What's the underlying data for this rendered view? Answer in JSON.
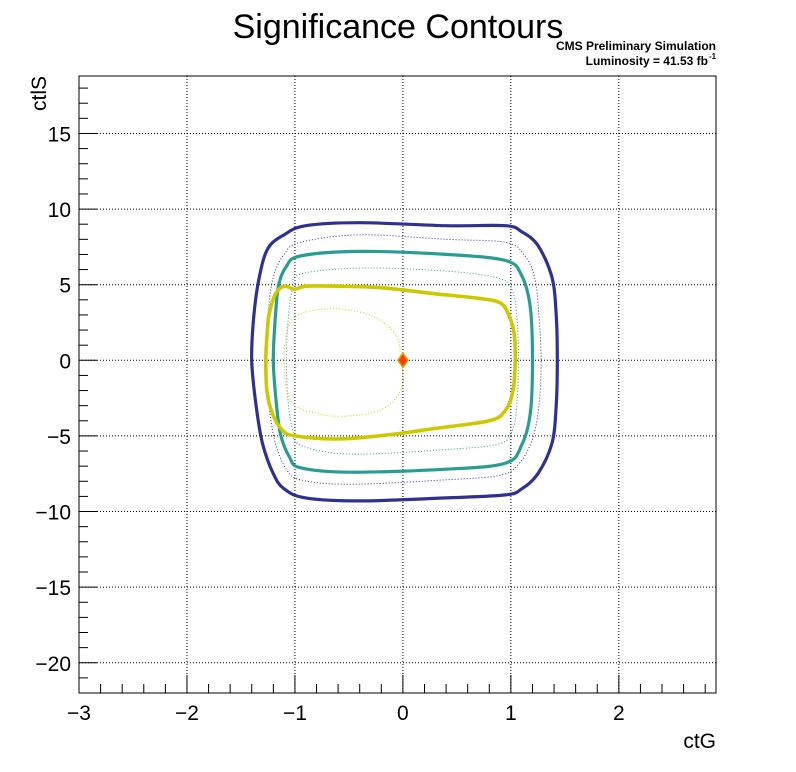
{
  "chart_data": {
    "type": "contour",
    "title": "Significance Contours",
    "annotations": [
      "CMS Preliminary Simulation",
      "Luminosity = 41.53 fb"
    ],
    "annotation_superscript": "-1",
    "xlabel": "ctG",
    "ylabel": "ctlS",
    "xlim": [
      -3,
      2.9
    ],
    "ylim": [
      -22,
      18.8
    ],
    "xticks": [
      -3,
      -2,
      -1,
      0,
      1,
      2
    ],
    "yticks": [
      -20,
      -15,
      -10,
      -5,
      0,
      5,
      10,
      15
    ],
    "xtick_labels": [
      "−3",
      "−2",
      "−1",
      "0",
      "1",
      "2"
    ],
    "ytick_labels": [
      "−20",
      "−15",
      "−10",
      "−5",
      "0",
      "5",
      "10",
      "15"
    ],
    "grid": true,
    "best_fit": {
      "x": 0,
      "y": 0,
      "color": "#ff3b00",
      "edge": "#d4a000"
    },
    "contours": [
      {
        "color": "#2e3192",
        "style": "solid",
        "width": 3.2,
        "points": [
          [
            -1.4,
            0
          ],
          [
            -1.36,
            -3
          ],
          [
            -1.3,
            -5.5
          ],
          [
            -1.2,
            -7.5
          ],
          [
            -1.1,
            -8.5
          ],
          [
            -0.9,
            -9.1
          ],
          [
            -0.4,
            -9.3
          ],
          [
            0.4,
            -9.1
          ],
          [
            0.95,
            -8.9
          ],
          [
            1.1,
            -8.5
          ],
          [
            1.25,
            -7.5
          ],
          [
            1.38,
            -5.5
          ],
          [
            1.42,
            -3
          ],
          [
            1.43,
            0
          ],
          [
            1.42,
            3
          ],
          [
            1.38,
            5.5
          ],
          [
            1.25,
            7.6
          ],
          [
            1.1,
            8.5
          ],
          [
            0.95,
            8.9
          ],
          [
            0.4,
            8.9
          ],
          [
            -0.4,
            9.1
          ],
          [
            -0.9,
            8.9
          ],
          [
            -1.1,
            8.3
          ],
          [
            -1.25,
            7.4
          ],
          [
            -1.33,
            5.5
          ],
          [
            -1.38,
            3
          ]
        ]
      },
      {
        "color": "#2e3192",
        "style": "dotted",
        "width": 1.0,
        "points": [
          [
            -1.27,
            0
          ],
          [
            -1.24,
            -3
          ],
          [
            -1.18,
            -5.5
          ],
          [
            -1.08,
            -7.2
          ],
          [
            -0.95,
            -7.9
          ],
          [
            -0.5,
            -8.2
          ],
          [
            0.4,
            -7.9
          ],
          [
            0.9,
            -7.6
          ],
          [
            1.08,
            -6.8
          ],
          [
            1.2,
            -5.2
          ],
          [
            1.26,
            -3
          ],
          [
            1.28,
            0
          ],
          [
            1.26,
            3
          ],
          [
            1.22,
            5.5
          ],
          [
            1.12,
            7.0
          ],
          [
            0.95,
            7.8
          ],
          [
            0.4,
            8.0
          ],
          [
            -0.4,
            8.3
          ],
          [
            -0.95,
            7.8
          ],
          [
            -1.1,
            7.0
          ],
          [
            -1.2,
            5.5
          ],
          [
            -1.25,
            3
          ]
        ]
      },
      {
        "color": "#2a9d93",
        "style": "solid",
        "width": 3.2,
        "points": [
          [
            -1.2,
            0
          ],
          [
            -1.17,
            -3
          ],
          [
            -1.13,
            -5
          ],
          [
            -1.05,
            -6.4
          ],
          [
            -0.95,
            -7.1
          ],
          [
            -0.5,
            -7.4
          ],
          [
            0.4,
            -7.2
          ],
          [
            0.95,
            -6.8
          ],
          [
            1.1,
            -5.6
          ],
          [
            1.18,
            -3.5
          ],
          [
            1.2,
            0
          ],
          [
            1.18,
            3.5
          ],
          [
            1.1,
            5.6
          ],
          [
            0.95,
            6.6
          ],
          [
            0.4,
            7.0
          ],
          [
            -0.4,
            7.2
          ],
          [
            -0.95,
            6.9
          ],
          [
            -1.08,
            6.2
          ],
          [
            -1.15,
            5
          ],
          [
            -1.18,
            3
          ]
        ]
      },
      {
        "color": "#2a9d93",
        "style": "dotted",
        "width": 1.0,
        "points": [
          [
            -1.08,
            0
          ],
          [
            -1.06,
            -3
          ],
          [
            -1.02,
            -4.6
          ],
          [
            -0.95,
            -5.6
          ],
          [
            -0.5,
            -6.2
          ],
          [
            0.4,
            -5.9
          ],
          [
            0.9,
            -5.5
          ],
          [
            1.02,
            -4.5
          ],
          [
            1.06,
            -2.5
          ],
          [
            1.07,
            0
          ],
          [
            1.06,
            2.5
          ],
          [
            1.02,
            4.5
          ],
          [
            0.9,
            5.4
          ],
          [
            0.4,
            5.9
          ],
          [
            -0.4,
            6.1
          ],
          [
            -0.95,
            5.7
          ],
          [
            -1.02,
            4.8
          ],
          [
            -1.06,
            3
          ]
        ]
      },
      {
        "color": "#cdc900",
        "style": "solid",
        "width": 3.6,
        "points": [
          [
            -1.27,
            0
          ],
          [
            -1.26,
            -2
          ],
          [
            -1.21,
            -3.5
          ],
          [
            -1.12,
            -4.6
          ],
          [
            -1.0,
            -5.0
          ],
          [
            -0.6,
            -5.2
          ],
          [
            -0.1,
            -4.9
          ],
          [
            0.3,
            -4.5
          ],
          [
            0.8,
            -4.0
          ],
          [
            0.95,
            -3.3
          ],
          [
            1.02,
            -2
          ],
          [
            1.04,
            0
          ],
          [
            1.03,
            1.8
          ],
          [
            0.98,
            3
          ],
          [
            0.9,
            3.8
          ],
          [
            0.7,
            4.1
          ],
          [
            0.3,
            4.4
          ],
          [
            -0.2,
            4.8
          ],
          [
            -0.6,
            4.9
          ],
          [
            -0.9,
            4.9
          ],
          [
            -1.0,
            4.7
          ],
          [
            -1.1,
            4.9
          ],
          [
            -1.18,
            4.4
          ],
          [
            -1.24,
            3
          ],
          [
            -1.26,
            1.5
          ]
        ]
      },
      {
        "color": "#cdc900",
        "style": "dotted",
        "width": 1.0,
        "points": [
          [
            -1.1,
            0
          ],
          [
            -1.08,
            -1.8
          ],
          [
            -1.0,
            -3.0
          ],
          [
            -0.8,
            -3.5
          ],
          [
            -0.6,
            -3.7
          ],
          [
            -0.3,
            -3.5
          ],
          [
            -0.1,
            -2.8
          ],
          [
            0.0,
            -1.5
          ],
          [
            -0.02,
            0
          ],
          [
            -0.05,
            1.5
          ],
          [
            -0.2,
            2.6
          ],
          [
            -0.4,
            3.2
          ],
          [
            -0.7,
            3.4
          ],
          [
            -1.0,
            2.9
          ],
          [
            -1.08,
            1.6
          ]
        ]
      }
    ]
  }
}
